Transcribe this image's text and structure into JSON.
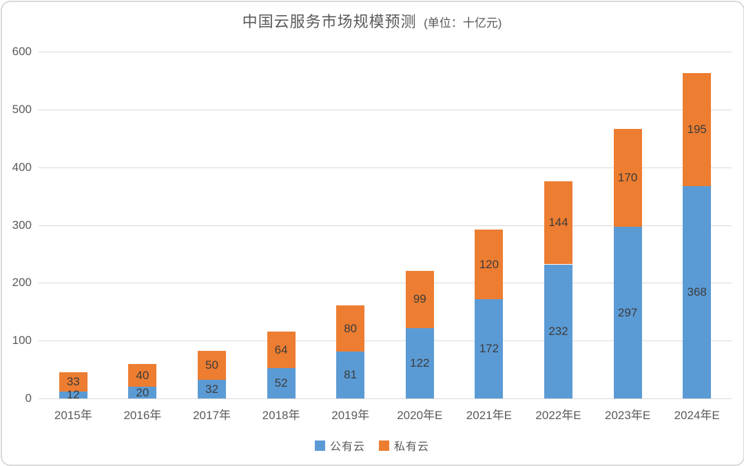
{
  "chart_data": {
    "type": "bar",
    "stacked": true,
    "title": "中国云服务市场规模预测",
    "title_suffix": "(单位：十亿元)",
    "categories": [
      "2015年",
      "2016年",
      "2017年",
      "2018年",
      "2019年",
      "2020年E",
      "2021年E",
      "2022年E",
      "2023年E",
      "2024年E"
    ],
    "series": [
      {
        "name": "公有云",
        "color": "#5B9BD5",
        "values": [
          12,
          20,
          32,
          52,
          81,
          122,
          172,
          232,
          297,
          368
        ]
      },
      {
        "name": "私有云",
        "color": "#ED7D31",
        "values": [
          33,
          40,
          50,
          64,
          80,
          99,
          120,
          144,
          170,
          195
        ]
      }
    ],
    "totals": [
      45,
      60,
      82,
      116,
      161,
      221,
      292,
      376,
      467,
      563
    ],
    "ylim": [
      0,
      600
    ],
    "yticks": [
      0,
      100,
      200,
      300,
      400,
      500,
      600
    ],
    "grid": true,
    "legend_position": "bottom",
    "value_labels": "inside-center"
  },
  "colors": {
    "public_cloud": "#5B9BD5",
    "private_cloud": "#ED7D31",
    "gridline": "#d9d9d9",
    "axis_text": "#595959",
    "value_text": "#3b3b3b",
    "card_border": "#d9d9d9",
    "background": "#ffffff"
  }
}
